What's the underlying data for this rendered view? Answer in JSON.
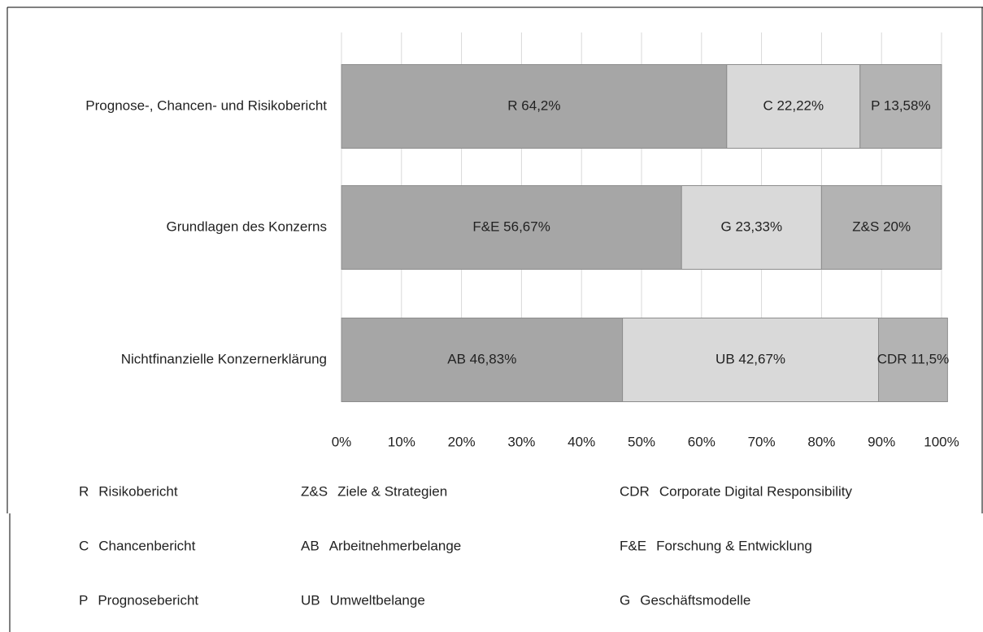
{
  "chart_data": {
    "type": "bar",
    "orientation": "horizontal",
    "stacked": true,
    "categories": [
      "Prognose-, Chancen- und Risikobericht",
      "Grundlagen des Konzerns",
      "Nichtfinanzielle Konzernerklärung"
    ],
    "series": [
      {
        "color": "#a6a6a6",
        "values": [
          64.2,
          56.67,
          46.83
        ],
        "value_labels": [
          "R 64,2%",
          "F&E 56,67%",
          "AB 46,83%"
        ]
      },
      {
        "color": "#d9d9d9",
        "values": [
          22.22,
          23.33,
          42.67
        ],
        "value_labels": [
          "C 22,22%",
          "G 23,33%",
          "UB 42,67%"
        ]
      },
      {
        "color": "#b3b3b3",
        "values": [
          13.58,
          20,
          11.5
        ],
        "value_labels": [
          "P 13,58%",
          "Z&S 20%",
          "CDR 11,5%"
        ]
      }
    ],
    "xlim": [
      0,
      100
    ],
    "xticks": [
      {
        "value": 0,
        "label": "0%"
      },
      {
        "value": 10,
        "label": "10%"
      },
      {
        "value": 20,
        "label": "20%"
      },
      {
        "value": 30,
        "label": "30%"
      },
      {
        "value": 40,
        "label": "40%"
      },
      {
        "value": 50,
        "label": "50%"
      },
      {
        "value": 60,
        "label": "60%"
      },
      {
        "value": 70,
        "label": "70%"
      },
      {
        "value": 80,
        "label": "80%"
      },
      {
        "value": 90,
        "label": "90%"
      },
      {
        "value": 100,
        "label": "100%"
      }
    ],
    "grid": true,
    "legend": [
      {
        "abbr": "R",
        "text": "Risikobericht"
      },
      {
        "abbr": "Z&S",
        "text": "Ziele & Strategien"
      },
      {
        "abbr": "CDR",
        "text": "Corporate Digital Responsibility"
      },
      {
        "abbr": "C",
        "text": "Chancenbericht"
      },
      {
        "abbr": "AB",
        "text": "Arbeitnehmerbelange"
      },
      {
        "abbr": "F&E",
        "text": "Forschung & Entwicklung"
      },
      {
        "abbr": "P",
        "text": "Prognosebericht"
      },
      {
        "abbr": "UB",
        "text": "Umweltbelange"
      },
      {
        "abbr": "G",
        "text": "Geschäftsmodelle"
      }
    ]
  }
}
